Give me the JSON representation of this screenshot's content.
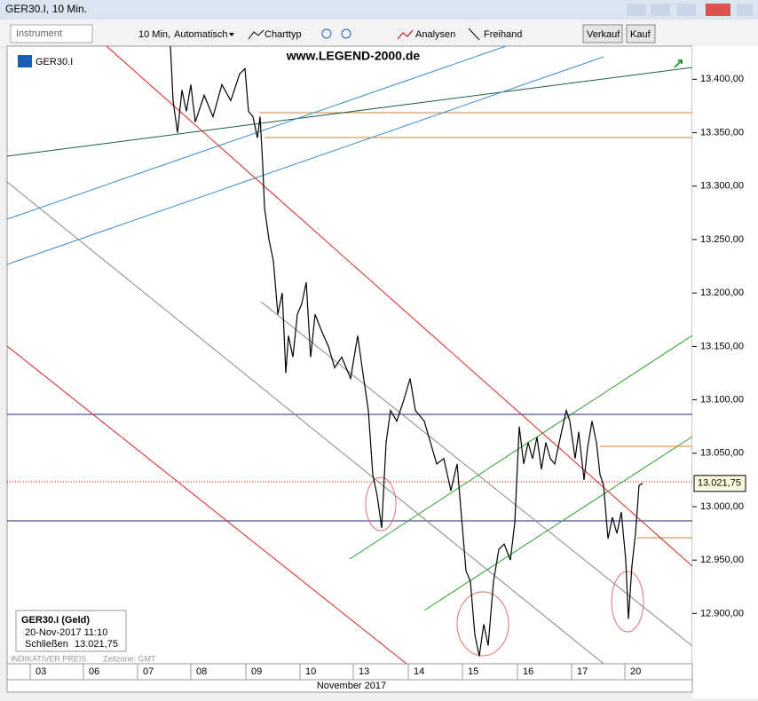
{
  "window": {
    "title": "GER30.I, 10 Min."
  },
  "toolbar": {
    "instrument": "Instrument",
    "interval": "10 Min,",
    "mode": "Automatisch",
    "charttype": "Charttyp",
    "analyses": "Analysen",
    "freehand": "Freihand",
    "sell": "Verkauf",
    "buy": "Kauf"
  },
  "chart_header": {
    "symbol": "GER30.I",
    "watermark": "www.LEGEND-2000.de"
  },
  "info_box": {
    "title": "GER30.I (Geld)",
    "datetime": "20-Nov-2017 11:10",
    "close_label": "Schließen",
    "close_value": "13.021,75"
  },
  "footer": {
    "indicative": "INDIKATIVER PREIS",
    "timezone": "Zeitzone: GMT",
    "month": "November 2017"
  },
  "chart_data": {
    "type": "line",
    "last_label": "13.021,75",
    "last_value": 13021.75,
    "ylim": [
      12853,
      13431
    ],
    "xlim": [
      0,
      772
    ],
    "yticks": [
      {
        "value": 12900,
        "label": "12.900,00"
      },
      {
        "value": 12950,
        "label": "12.950,00"
      },
      {
        "value": 13000,
        "label": "13.000,00"
      },
      {
        "value": 13050,
        "label": "13.050,00"
      },
      {
        "value": 13100,
        "label": "13.100,00"
      },
      {
        "value": 13150,
        "label": "13.150,00"
      },
      {
        "value": 13200,
        "label": "13.200,00"
      },
      {
        "value": 13250,
        "label": "13.250,00"
      },
      {
        "value": 13300,
        "label": "13.300,00"
      },
      {
        "value": 13350,
        "label": "13.350,00"
      },
      {
        "value": 13400,
        "label": "13.400,00"
      }
    ],
    "xticks": [
      {
        "value": 26,
        "label": "03"
      },
      {
        "value": 86,
        "label": "06"
      },
      {
        "value": 147,
        "label": "07"
      },
      {
        "value": 207,
        "label": "08"
      },
      {
        "value": 269,
        "label": "09"
      },
      {
        "value": 330,
        "label": "10"
      },
      {
        "value": 390,
        "label": "13"
      },
      {
        "value": 452,
        "label": "14"
      },
      {
        "value": 513,
        "label": "15"
      },
      {
        "value": 575,
        "label": "16"
      },
      {
        "value": 636,
        "label": "17"
      },
      {
        "value": 696,
        "label": "20"
      }
    ],
    "series": [
      {
        "name": "GER30.I",
        "color": "#000000",
        "x": [
          184,
          187,
          192,
          197,
          202,
          207,
          212,
          222,
          232,
          242,
          252,
          262,
          268,
          272,
          277,
          282,
          285,
          288,
          290,
          295,
          300,
          305,
          310,
          314,
          317,
          322,
          327,
          332,
          337,
          342,
          347,
          354,
          362,
          369,
          377,
          387,
          395,
          400,
          407,
          412,
          417,
          422,
          427,
          432,
          439,
          447,
          454,
          460,
          470,
          477,
          484,
          492,
          500,
          507,
          512,
          517,
          522,
          527,
          532,
          537,
          542,
          548,
          554,
          560,
          567,
          572,
          577,
          582,
          587,
          592,
          597,
          602,
          607,
          612,
          617,
          622,
          630,
          634,
          640,
          644,
          650,
          654,
          659,
          664,
          668,
          672,
          677,
          682,
          687,
          692,
          697,
          700,
          704,
          708,
          712,
          716
        ],
        "values": [
          13431,
          13380,
          13350,
          13390,
          13370,
          13395,
          13360,
          13385,
          13365,
          13395,
          13380,
          13405,
          13410,
          13370,
          13365,
          13345,
          13365,
          13320,
          13280,
          13250,
          13230,
          13180,
          13200,
          13125,
          13160,
          13140,
          13180,
          13190,
          13210,
          13140,
          13180,
          13165,
          13150,
          13130,
          13140,
          13120,
          13160,
          13130,
          13090,
          13030,
          13010,
          12980,
          13060,
          13090,
          13080,
          13100,
          13120,
          13090,
          13080,
          13060,
          13040,
          13045,
          13015,
          13040,
          12990,
          12940,
          12930,
          12880,
          12860,
          12890,
          12870,
          12930,
          12960,
          12965,
          12950,
          12985,
          13075,
          13040,
          13060,
          13045,
          13065,
          13035,
          13060,
          13045,
          13040,
          13060,
          13090,
          13080,
          13045,
          13070,
          13025,
          13055,
          13080,
          13060,
          13030,
          13020,
          12970,
          12990,
          12975,
          12995,
          12950,
          12895,
          12945,
          12975,
          13020,
          13021.75
        ]
      }
    ]
  }
}
